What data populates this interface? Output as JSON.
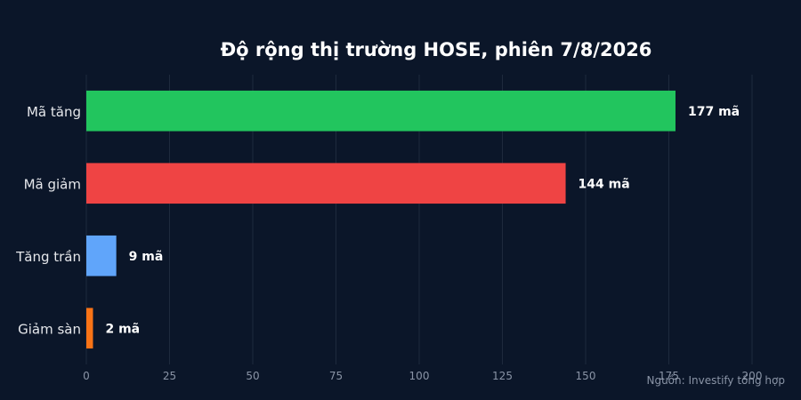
{
  "chart_data": {
    "type": "bar",
    "orientation": "horizontal",
    "title": "Độ rộng thị trường HOSE, phiên 7/8/2026",
    "categories": [
      "Mã tăng",
      "Mã giảm",
      "Tăng trần",
      "Giảm sàn"
    ],
    "values": [
      177,
      144,
      9,
      2
    ],
    "data_labels": [
      "177 mã",
      "144 mã",
      "9 mã",
      "2 mã"
    ],
    "colors": [
      "#22c55e",
      "#ef4444",
      "#60a5fa",
      "#f97316"
    ],
    "xlim": [
      0,
      200
    ],
    "x_ticks": [
      0,
      25,
      50,
      75,
      100,
      125,
      150,
      175,
      200
    ],
    "grid": true,
    "legend": "none"
  },
  "source": "Nguồn: Investify tổng hợp",
  "colors": {
    "background": "#0b1629",
    "grid": "#1e2a3d",
    "axis_text": "#8a94a6",
    "category_text": "#e5e7eb",
    "value_text": "#ffffff"
  }
}
